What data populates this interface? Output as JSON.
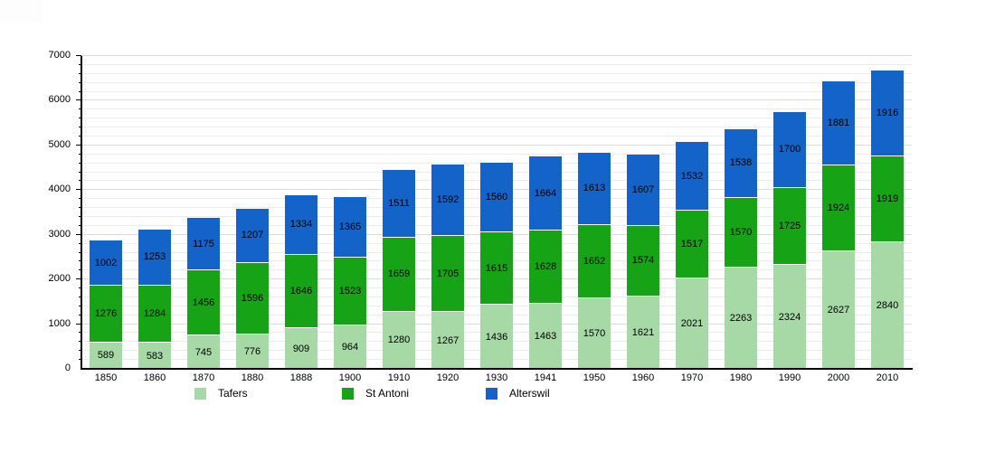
{
  "chart_data": {
    "type": "bar",
    "stacked": true,
    "title": "",
    "categories": [
      "1850",
      "1860",
      "1870",
      "1880",
      "1888",
      "1900",
      "1910",
      "1920",
      "1930",
      "1941",
      "1950",
      "1960",
      "1970",
      "1980",
      "1990",
      "2000",
      "2010"
    ],
    "series": [
      {
        "name": "Tafers",
        "color": "#a6d9a6",
        "values": [
          589,
          583,
          745,
          776,
          909,
          964,
          1280,
          1267,
          1436,
          1463,
          1570,
          1621,
          2021,
          2263,
          2324,
          2627,
          2840
        ]
      },
      {
        "name": "St Antoni",
        "color": "#16a416",
        "values": [
          1276,
          1284,
          1456,
          1596,
          1646,
          1523,
          1659,
          1705,
          1615,
          1628,
          1652,
          1574,
          1517,
          1570,
          1725,
          1924,
          1919
        ]
      },
      {
        "name": "Alterswil",
        "color": "#1363c8",
        "values": [
          1002,
          1253,
          1175,
          1207,
          1334,
          1365,
          1511,
          1592,
          1560,
          1664,
          1613,
          1607,
          1532,
          1538,
          1700,
          1881,
          1916
        ]
      }
    ],
    "xlabel": "",
    "ylabel": "",
    "ylim": [
      0,
      7000
    ],
    "ytick_step": 1000,
    "yminor_step": 200,
    "ytick_labels": [
      "0",
      "1000",
      "2000",
      "3000",
      "4000",
      "5000",
      "6000",
      "7000"
    ],
    "grid": true,
    "bar_value_labels": true,
    "legend_position": "bottom"
  }
}
